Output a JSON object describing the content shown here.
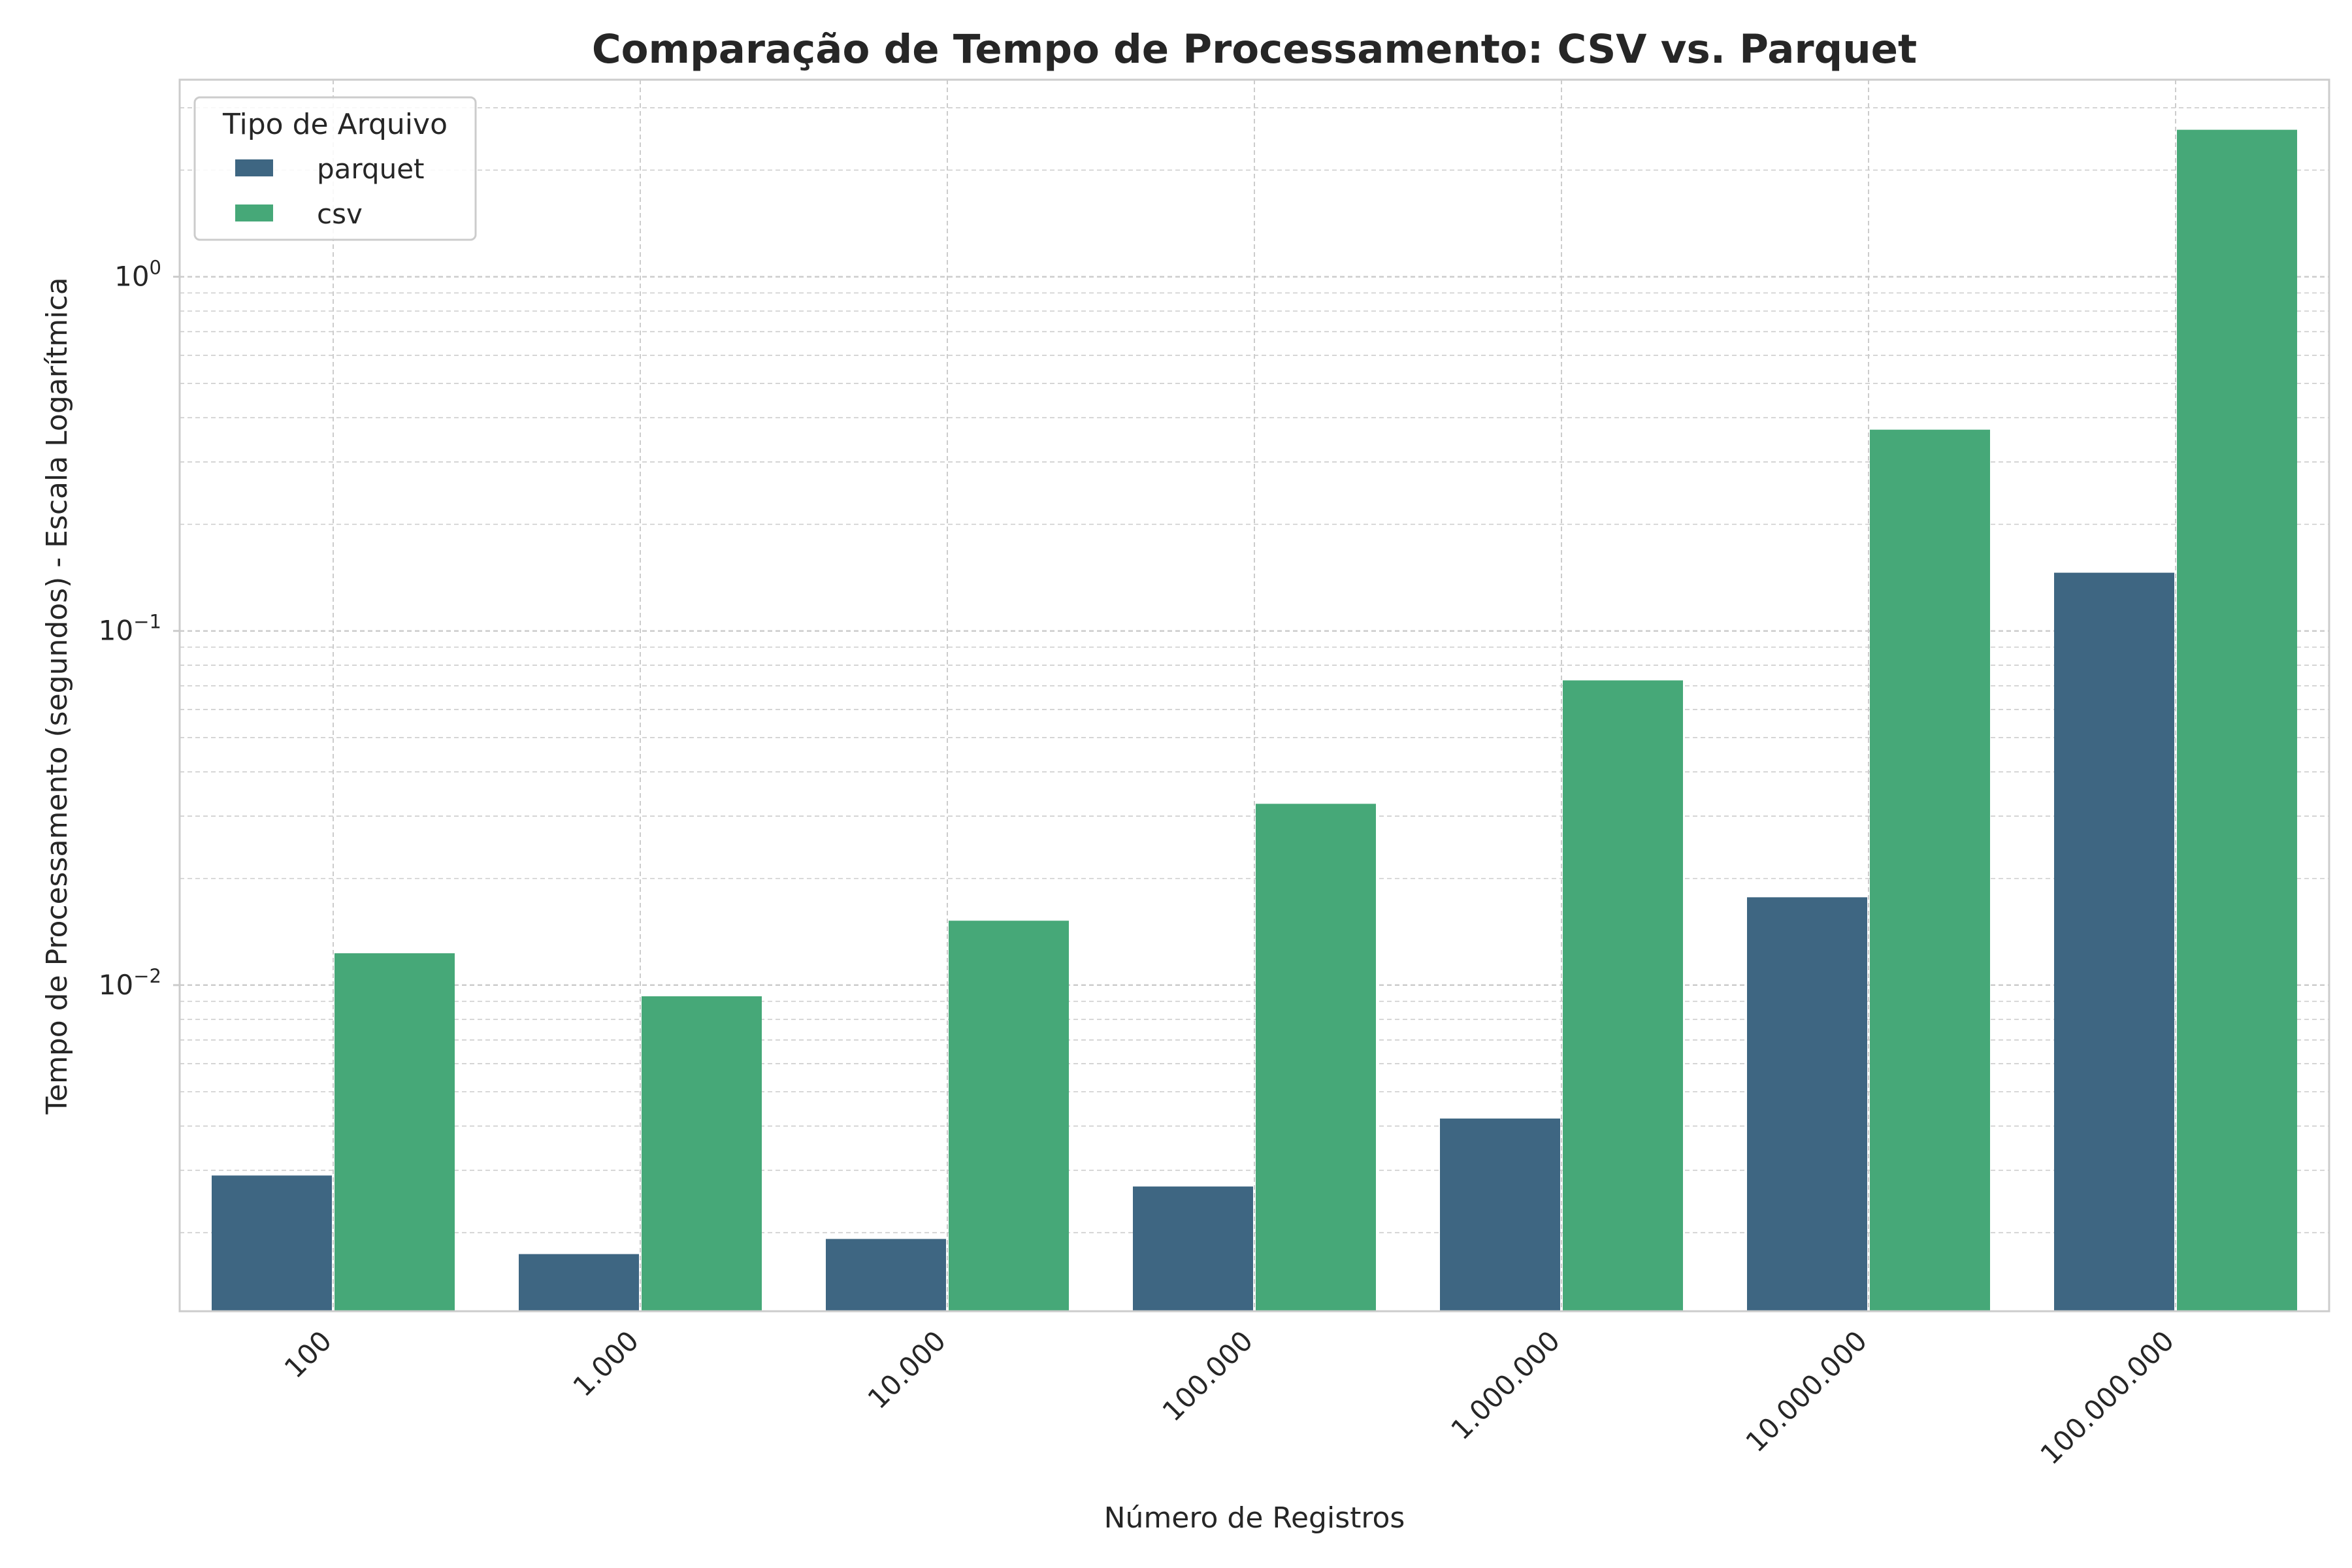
{
  "chart_data": {
    "type": "bar",
    "title": "Comparação de Tempo de Processamento: CSV vs. Parquet",
    "xlabel": "Número de Registros",
    "ylabel": "Tempo de Processamento (segundos) - Escala Logarítmica",
    "yscale": "log",
    "ylim": [
      0.0012,
      3.6
    ],
    "grid": true,
    "categories": [
      "100",
      "1.000",
      "10.000",
      "100.000",
      "1.000.000",
      "10.000.000",
      "100.000.000"
    ],
    "series": [
      {
        "name": "parquet",
        "color": "#3e6682",
        "values": [
          0.0029,
          0.00174,
          0.00192,
          0.0027,
          0.0042,
          0.0177,
          0.146
        ]
      },
      {
        "name": "csv",
        "color": "#46a878",
        "values": [
          0.0123,
          0.0093,
          0.0152,
          0.0325,
          0.0725,
          0.37,
          2.6
        ]
      }
    ],
    "yticks": [
      {
        "value": 0.01,
        "base": "10",
        "exp": "−2"
      },
      {
        "value": 0.1,
        "base": "10",
        "exp": "−1"
      },
      {
        "value": 1,
        "base": "10",
        "exp": "0"
      }
    ],
    "legend": {
      "title": "Tipo de Arquivo",
      "position": "top-left"
    }
  }
}
